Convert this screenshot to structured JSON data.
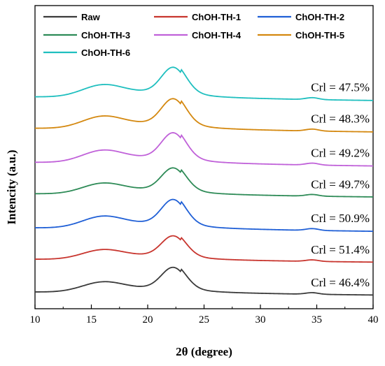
{
  "chart_data": {
    "type": "line",
    "xlabel": "2θ (degree)",
    "ylabel": "Intencity (a.u.)",
    "xlim": [
      10,
      40
    ],
    "xticks": [
      "10",
      "15",
      "20",
      "25",
      "30",
      "35",
      "40"
    ],
    "legend_position": "top",
    "grid": false,
    "y_tick_labels": false,
    "series": [
      {
        "name": "Raw",
        "color": "#3a3a3a",
        "annotation": "Crl = 46.4%",
        "base": 0.0,
        "amp": 1.0
      },
      {
        "name": "ChOH-TH-1",
        "color": "#c8352e",
        "annotation": "Crl = 51.4%",
        "base": 1.25,
        "amp": 0.95
      },
      {
        "name": "ChOH-TH-2",
        "color": "#1f5fd6",
        "annotation": "Crl = 50.9%",
        "base": 2.45,
        "amp": 1.15
      },
      {
        "name": "ChOH-TH-3",
        "color": "#2e8b57",
        "annotation": "Crl = 49.7%",
        "base": 3.75,
        "amp": 1.05
      },
      {
        "name": "ChOH-TH-4",
        "color": "#c061d9",
        "annotation": "Crl = 49.2%",
        "base": 4.95,
        "amp": 1.2
      },
      {
        "name": "ChOH-TH-5",
        "color": "#d4880f",
        "annotation": "Crl = 48.3%",
        "base": 6.25,
        "amp": 1.2
      },
      {
        "name": "ChOH-TH-6",
        "color": "#1fbfbf",
        "annotation": "Crl = 47.5%",
        "base": 7.45,
        "amp": 1.2
      }
    ]
  }
}
